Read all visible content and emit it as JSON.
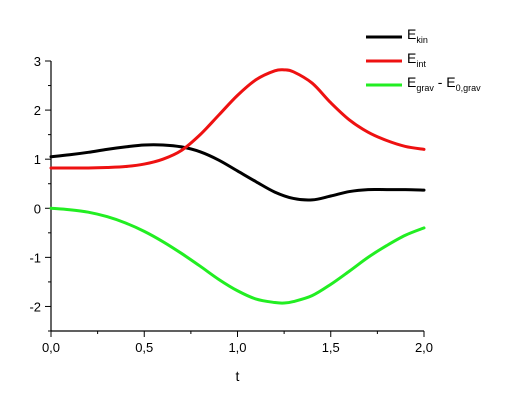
{
  "chart_data": {
    "type": "line",
    "title": "",
    "xlabel": "t",
    "ylabel": "",
    "xlim": [
      0.0,
      2.0
    ],
    "ylim": [
      -2.5,
      3.0
    ],
    "xticks": [
      0.0,
      0.5,
      1.0,
      1.5,
      2.0
    ],
    "xtick_labels": [
      "0,0",
      "0,5",
      "1,0",
      "1,5",
      "2,0"
    ],
    "yticks": [
      -2,
      -1,
      0,
      1,
      2,
      3
    ],
    "ytick_labels": [
      "-2",
      "-1",
      "0",
      "1",
      "2",
      "3"
    ],
    "grid": false,
    "legend_position": "top-right",
    "series": [
      {
        "name": "E_kin",
        "label_main": "E",
        "label_sub": "kin",
        "color": "#000000",
        "x": [
          0.0,
          0.1,
          0.2,
          0.3,
          0.4,
          0.5,
          0.6,
          0.7,
          0.8,
          0.9,
          1.0,
          1.1,
          1.2,
          1.3,
          1.4,
          1.5,
          1.6,
          1.7,
          1.8,
          1.9,
          2.0
        ],
        "y": [
          1.05,
          1.09,
          1.14,
          1.2,
          1.25,
          1.29,
          1.29,
          1.25,
          1.15,
          0.98,
          0.76,
          0.54,
          0.33,
          0.2,
          0.17,
          0.25,
          0.34,
          0.38,
          0.38,
          0.38,
          0.37
        ]
      },
      {
        "name": "E_int",
        "label_main": "E",
        "label_sub": "int",
        "color": "#ee1111",
        "x": [
          0.0,
          0.1,
          0.2,
          0.3,
          0.4,
          0.5,
          0.6,
          0.7,
          0.8,
          0.9,
          1.0,
          1.1,
          1.2,
          1.25,
          1.3,
          1.4,
          1.5,
          1.6,
          1.7,
          1.8,
          1.9,
          2.0
        ],
        "y": [
          0.82,
          0.82,
          0.82,
          0.83,
          0.85,
          0.9,
          1.0,
          1.18,
          1.5,
          1.9,
          2.3,
          2.62,
          2.8,
          2.82,
          2.78,
          2.55,
          2.15,
          1.8,
          1.55,
          1.38,
          1.26,
          1.2
        ]
      },
      {
        "name": "E_grav - E_0,grav",
        "label_main": "E",
        "label_sub": "grav",
        "label_mid": " - E",
        "label_sub2": "0,grav",
        "color": "#22ee22",
        "x": [
          0.0,
          0.1,
          0.2,
          0.3,
          0.4,
          0.5,
          0.6,
          0.7,
          0.8,
          0.9,
          1.0,
          1.1,
          1.2,
          1.25,
          1.3,
          1.4,
          1.5,
          1.6,
          1.7,
          1.8,
          1.9,
          2.0
        ],
        "y": [
          0.0,
          -0.03,
          -0.08,
          -0.17,
          -0.3,
          -0.47,
          -0.68,
          -0.92,
          -1.18,
          -1.45,
          -1.68,
          -1.85,
          -1.92,
          -1.93,
          -1.9,
          -1.78,
          -1.55,
          -1.28,
          -1.0,
          -0.76,
          -0.55,
          -0.4
        ]
      }
    ]
  }
}
